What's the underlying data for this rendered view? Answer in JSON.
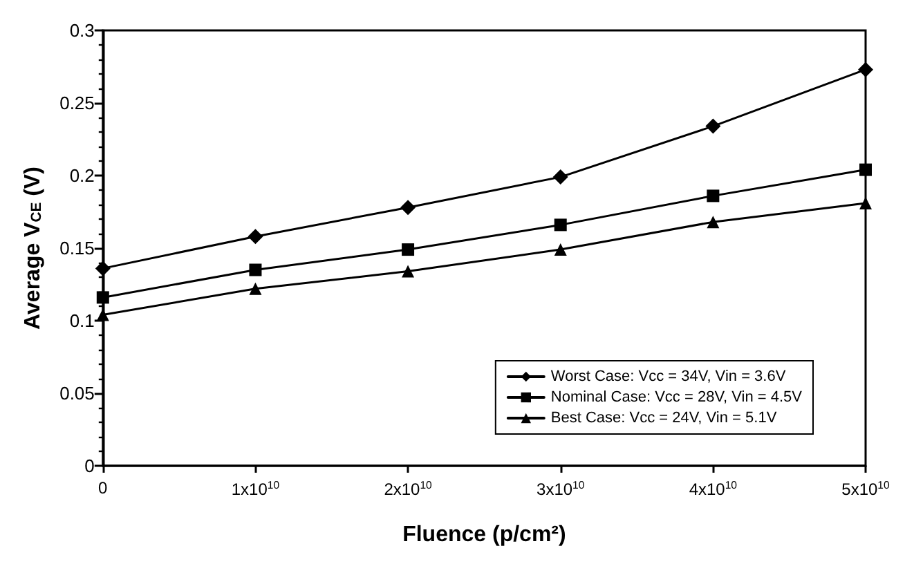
{
  "chart_data": {
    "type": "line",
    "xlabel": "Fluence (p/cm²)",
    "ylabel": "Average V$_{CE}$ (V)",
    "x": [
      0,
      10000000000,
      20000000000,
      30000000000,
      40000000000,
      50000000000
    ],
    "series": [
      {
        "name": "Worst Case: Vcc = 34V, Vin = 3.6V",
        "color": "#000000",
        "marker": "diamond",
        "values": [
          0.136,
          0.158,
          0.178,
          0.199,
          0.234,
          0.273
        ]
      },
      {
        "name": "Nominal Case: Vcc = 28V, Vin = 4.5V",
        "color": "#000000",
        "marker": "square",
        "values": [
          0.116,
          0.135,
          0.149,
          0.166,
          0.186,
          0.204
        ]
      },
      {
        "name": "Best Case: Vcc = 24V, Vin = 5.1V",
        "color": "#000000",
        "marker": "triangle",
        "values": [
          0.104,
          0.122,
          0.134,
          0.149,
          0.168,
          0.181
        ]
      }
    ],
    "xlim": [
      0,
      50000000000
    ],
    "xticks": [
      0,
      {
        "value": 10000000000,
        "label": "1x10$^{10}$"
      },
      {
        "value": 20000000000,
        "label": "2x10$^{10}$"
      },
      {
        "value": 30000000000,
        "label": "3x10$^{10}$"
      },
      {
        "value": 40000000000,
        "label": "4x10$^{10}$"
      },
      {
        "value": 50000000000,
        "label": "5x10$^{10}$"
      }
    ],
    "ylim": [
      0,
      0.3
    ],
    "yticks": [
      0,
      0.05,
      0.1,
      0.15,
      0.2,
      0.25,
      0.3
    ],
    "grid": false,
    "legend": "bottom right",
    "line_style": "solid"
  }
}
